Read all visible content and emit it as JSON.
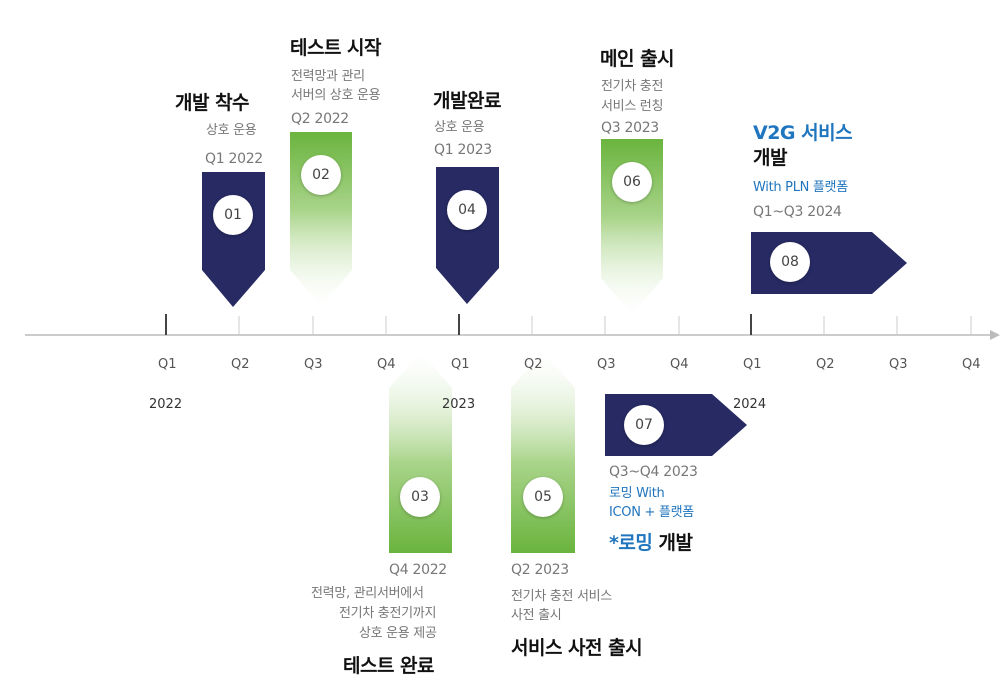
{
  "milestones": [
    {
      "num": "01",
      "title": "개발 착수",
      "sub": "상호 운용",
      "date": "Q1 2022"
    },
    {
      "num": "02",
      "title": "테스트 시작",
      "sub1": "전력망과 관리",
      "sub2": "서버의 상호 운용",
      "date": "Q2 2022"
    },
    {
      "num": "03",
      "title": "테스트 완료",
      "date": "Q4 2022",
      "sub1": "전력망, 관리서버에서",
      "sub2": "전기차 충전기까지",
      "sub3": "상호 운용 제공"
    },
    {
      "num": "04",
      "title": "개발완료",
      "sub": "상호 운용",
      "date": "Q1 2023"
    },
    {
      "num": "05",
      "title": "서비스 사전 출시",
      "date": "Q2 2023",
      "sub1": "전기차 충전 서비스",
      "sub2": "사전 출시"
    },
    {
      "num": "06",
      "title": "메인 출시",
      "sub1": "전기차 충전",
      "sub2": "서비스 런칭",
      "date": "Q3 2023"
    },
    {
      "num": "07",
      "date": "Q3~Q4 2023",
      "sub1": "로밍 With",
      "sub2": "ICON + 플랫폼",
      "title_accent": "*로밍",
      "title_rest": " 개발"
    },
    {
      "num": "08",
      "title_accent": "V2G 서비스",
      "title_line2": "개발",
      "sub": "With PLN 플랫폼",
      "date": "Q1~Q3 2024"
    }
  ],
  "timeline": {
    "quarters": [
      "Q1",
      "Q2",
      "Q3",
      "Q4",
      "Q1",
      "Q2",
      "Q3",
      "Q4",
      "Q1",
      "Q2",
      "Q3",
      "Q4"
    ],
    "years": [
      "2022",
      "2023",
      "2024"
    ]
  },
  "colors": {
    "navy": "#272a63",
    "green": "#6ab43e",
    "accent_blue": "#1f75be",
    "axis": "#bbbbbb"
  }
}
